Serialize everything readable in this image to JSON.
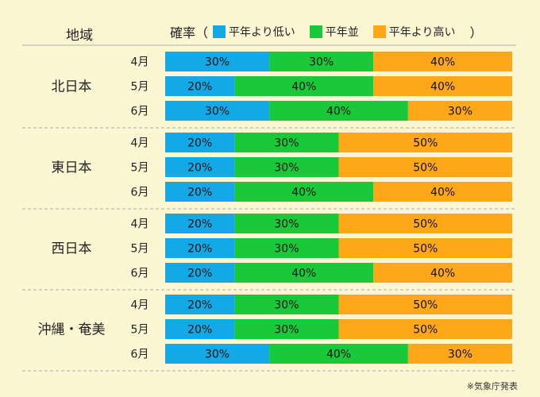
{
  "header": {
    "region_label": "地域",
    "probability_label": "確率（",
    "close_paren": "）"
  },
  "colors": {
    "background": "#fdf6d3",
    "below": "#13a9e6",
    "normal": "#1ac93a",
    "above": "#fea718",
    "divider": "#aaaaaa"
  },
  "chart_data": {
    "type": "bar",
    "orientation": "horizontal",
    "stacked": true,
    "unit": "%",
    "series": [
      {
        "name": "平年より低い",
        "color": "#13a9e6"
      },
      {
        "name": "平年並",
        "color": "#1ac93a"
      },
      {
        "name": "平年より高い",
        "color": "#fea718"
      }
    ],
    "regions": [
      {
        "name": "北日本",
        "months": [
          {
            "label": "4月",
            "values": [
              30,
              30,
              40
            ]
          },
          {
            "label": "5月",
            "values": [
              20,
              40,
              40
            ]
          },
          {
            "label": "6月",
            "values": [
              30,
              40,
              30
            ]
          }
        ]
      },
      {
        "name": "東日本",
        "months": [
          {
            "label": "4月",
            "values": [
              20,
              30,
              50
            ]
          },
          {
            "label": "5月",
            "values": [
              20,
              30,
              50
            ]
          },
          {
            "label": "6月",
            "values": [
              20,
              40,
              40
            ]
          }
        ]
      },
      {
        "name": "西日本",
        "months": [
          {
            "label": "4月",
            "values": [
              20,
              30,
              50
            ]
          },
          {
            "label": "5月",
            "values": [
              20,
              30,
              50
            ]
          },
          {
            "label": "6月",
            "values": [
              20,
              40,
              40
            ]
          }
        ]
      },
      {
        "name": "沖縄・奄美",
        "months": [
          {
            "label": "4月",
            "values": [
              20,
              30,
              50
            ]
          },
          {
            "label": "5月",
            "values": [
              20,
              30,
              50
            ]
          },
          {
            "label": "6月",
            "values": [
              30,
              40,
              30
            ]
          }
        ]
      }
    ]
  },
  "footer": {
    "credit": "※気象庁発表"
  }
}
